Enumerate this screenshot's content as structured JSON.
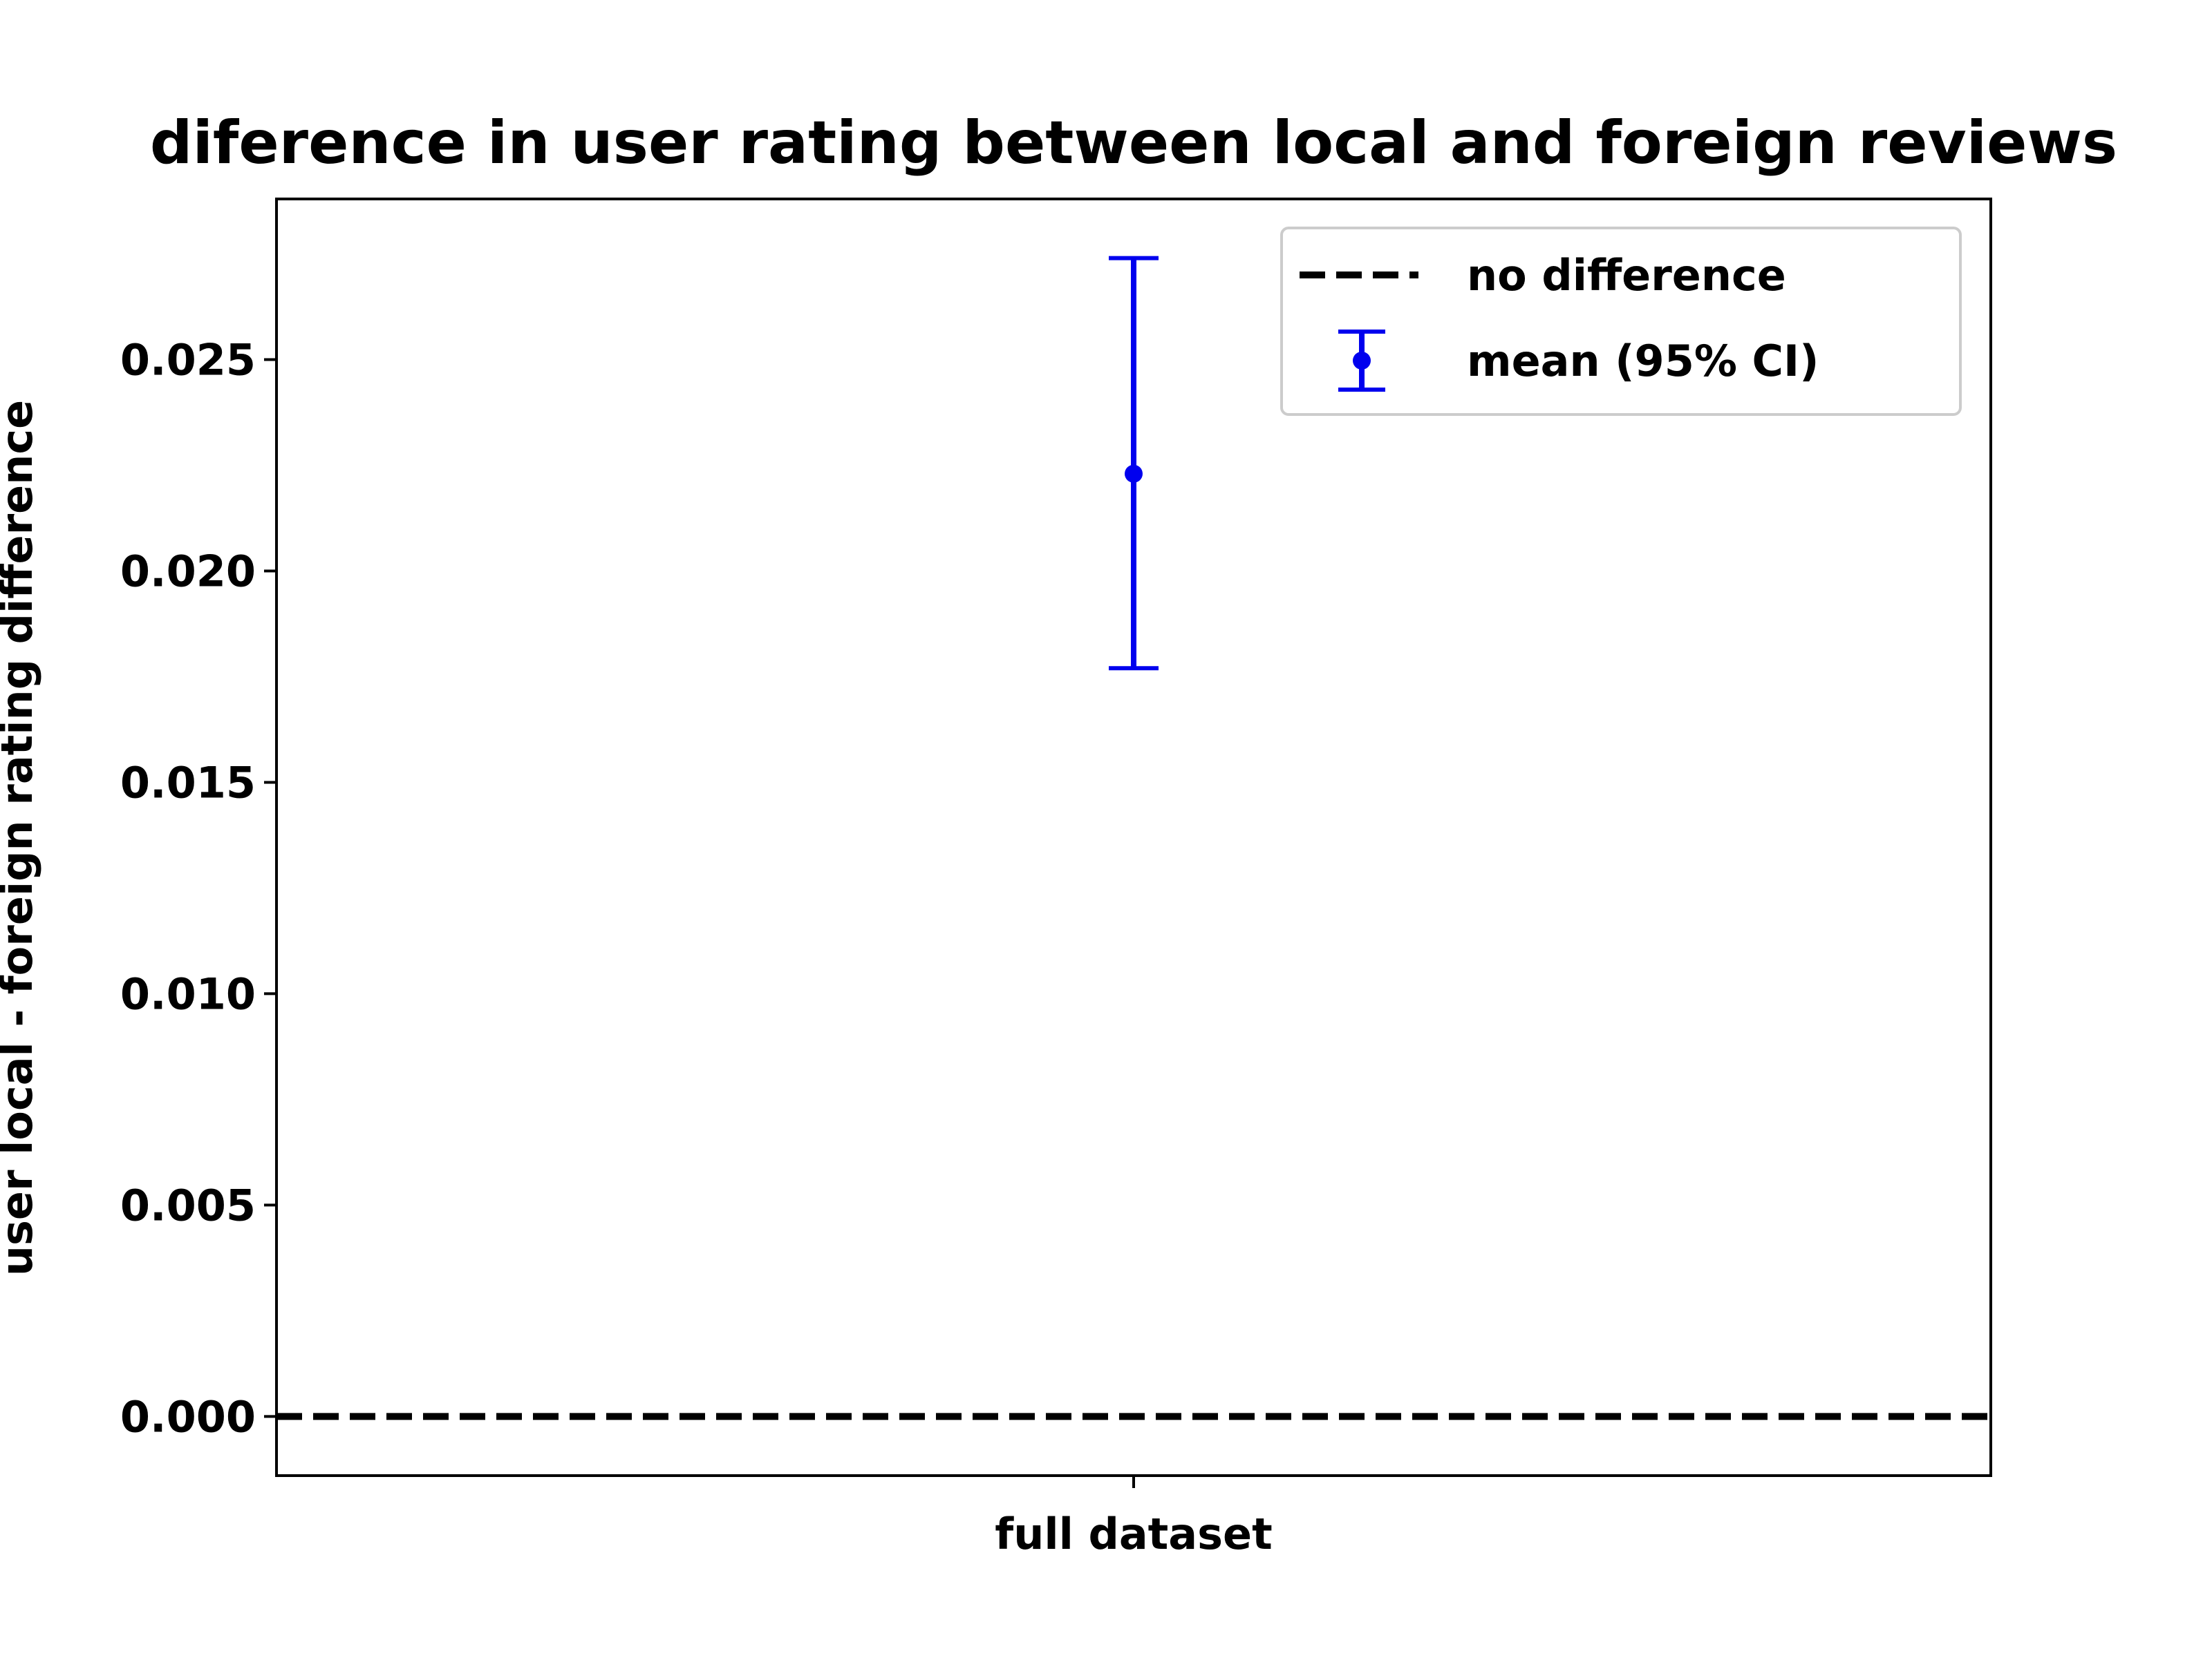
{
  "chart_data": {
    "type": "errorbar",
    "title": "diference in user rating between local and foreign reviews",
    "xlabel": "",
    "ylabel": "user local - foreign rating difference",
    "categories": [
      "full dataset"
    ],
    "series": [
      {
        "name": "mean (95% CI)",
        "values": [
          0.0223
        ],
        "ci_lower": [
          0.0177
        ],
        "ci_upper": [
          0.0274
        ],
        "color": "#0000ee"
      }
    ],
    "reference_lines": [
      {
        "name": "no difference",
        "y": 0.0,
        "style": "dashed",
        "color": "#000000"
      }
    ],
    "ylim": [
      -0.0014,
      0.0288
    ],
    "yticks": [
      0.0,
      0.005,
      0.01,
      0.015,
      0.02,
      0.025
    ],
    "ytick_labels": [
      "0.000",
      "0.005",
      "0.010",
      "0.015",
      "0.020",
      "0.025"
    ],
    "grid": false,
    "legend": {
      "placement": "upper right"
    }
  }
}
